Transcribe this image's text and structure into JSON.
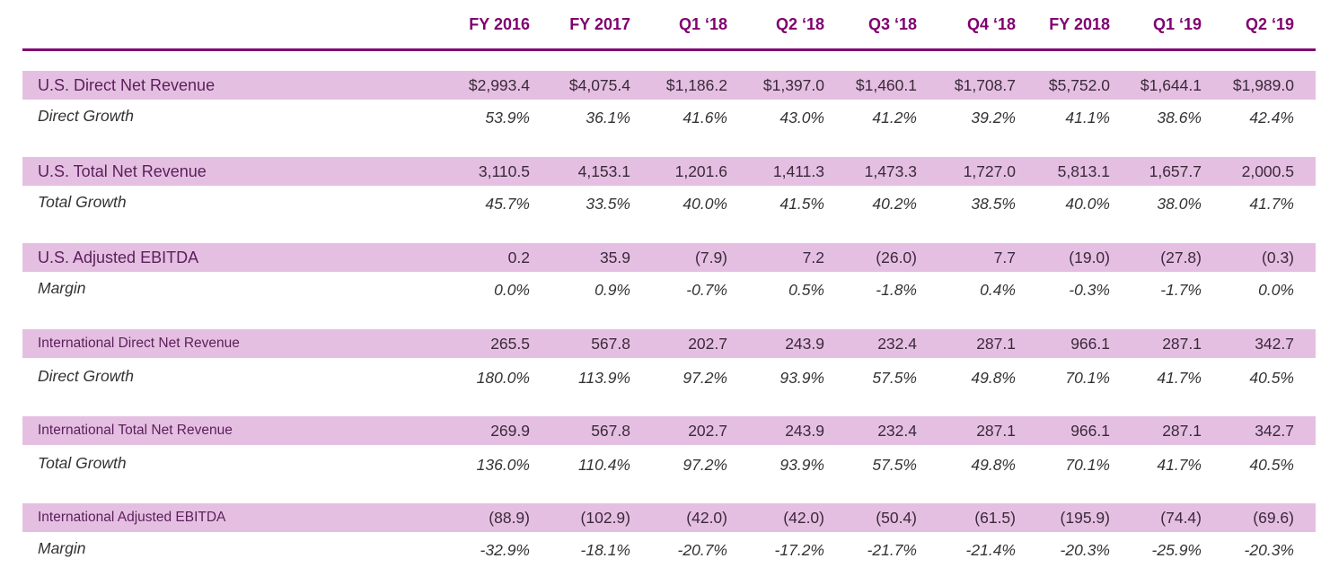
{
  "columns": [
    "FY 2016",
    "FY 2017",
    "Q1 ‘18",
    "Q2 ‘18",
    "Q3 ‘18",
    "Q4 ‘18",
    "FY 2018",
    "Q1 ‘19",
    "Q2 ‘19"
  ],
  "colors": {
    "accent": "#800070",
    "band": "#e5bfe2",
    "text": "#2b2b2b"
  },
  "rows": [
    {
      "label": "U.S. Direct Net Revenue",
      "values": [
        "$2,993.4",
        "$4,075.4",
        "$1,186.2",
        "$1,397.0",
        "$1,460.1",
        "$1,708.7",
        "$5,752.0",
        "$1,644.1",
        "$1,989.0"
      ]
    },
    {
      "label": "Direct Growth",
      "values": [
        "53.9%",
        "36.1%",
        "41.6%",
        "43.0%",
        "41.2%",
        "39.2%",
        "41.1%",
        "38.6%",
        "42.4%"
      ]
    },
    {
      "label": "U.S. Total Net Revenue",
      "values": [
        "3,110.5",
        "4,153.1",
        "1,201.6",
        "1,411.3",
        "1,473.3",
        "1,727.0",
        "5,813.1",
        "1,657.7",
        "2,000.5"
      ]
    },
    {
      "label": "Total Growth",
      "values": [
        "45.7%",
        "33.5%",
        "40.0%",
        "41.5%",
        "40.2%",
        "38.5%",
        "40.0%",
        "38.0%",
        "41.7%"
      ]
    },
    {
      "label": "U.S. Adjusted EBITDA",
      "values": [
        "0.2",
        "35.9",
        "(7.9)",
        "7.2",
        "(26.0)",
        "7.7",
        "(19.0)",
        "(27.8)",
        "(0.3)"
      ]
    },
    {
      "label": "Margin",
      "values": [
        "0.0%",
        "0.9%",
        "-0.7%",
        "0.5%",
        "-1.8%",
        "0.4%",
        "-0.3%",
        "-1.7%",
        "0.0%"
      ]
    },
    {
      "label": "International Direct Net Revenue",
      "values": [
        "265.5",
        "567.8",
        "202.7",
        "243.9",
        "232.4",
        "287.1",
        "966.1",
        "287.1",
        "342.7"
      ]
    },
    {
      "label": "Direct Growth",
      "values": [
        "180.0%",
        "113.9%",
        "97.2%",
        "93.9%",
        "57.5%",
        "49.8%",
        "70.1%",
        "41.7%",
        "40.5%"
      ]
    },
    {
      "label": "International Total Net Revenue",
      "values": [
        "269.9",
        "567.8",
        "202.7",
        "243.9",
        "232.4",
        "287.1",
        "966.1",
        "287.1",
        "342.7"
      ]
    },
    {
      "label": "Total Growth",
      "values": [
        "136.0%",
        "110.4%",
        "97.2%",
        "93.9%",
        "57.5%",
        "49.8%",
        "70.1%",
        "41.7%",
        "40.5%"
      ]
    },
    {
      "label": "International Adjusted EBITDA",
      "values": [
        "(88.9)",
        "(102.9)",
        "(42.0)",
        "(42.0)",
        "(50.4)",
        "(61.5)",
        "(195.9)",
        "(74.4)",
        "(69.6)"
      ]
    },
    {
      "label": "Margin",
      "values": [
        "-32.9%",
        "-18.1%",
        "-20.7%",
        "-17.2%",
        "-21.7%",
        "-21.4%",
        "-20.3%",
        "-25.9%",
        "-20.3%"
      ]
    }
  ]
}
